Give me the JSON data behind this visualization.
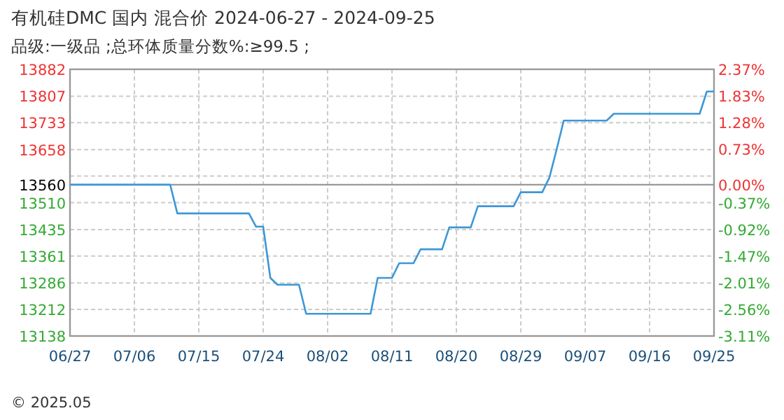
{
  "chart_data": {
    "type": "line",
    "title": "有机硅DMC 国内 混合价 2024-06-27 - 2024-09-25",
    "subtitle": "品级:一级品 ;总环体质量分数%:≥99.5 ;",
    "x": [
      "2024-06-27",
      "2024-07-11",
      "2024-07-12",
      "2024-07-22",
      "2024-07-23",
      "2024-07-24",
      "2024-07-25",
      "2024-07-26",
      "2024-07-29",
      "2024-07-30",
      "2024-08-08",
      "2024-08-09",
      "2024-08-11",
      "2024-08-12",
      "2024-08-14",
      "2024-08-15",
      "2024-08-18",
      "2024-08-19",
      "2024-08-22",
      "2024-08-23",
      "2024-08-28",
      "2024-08-29",
      "2024-09-01",
      "2024-09-02",
      "2024-09-03",
      "2024-09-04",
      "2024-09-10",
      "2024-09-11",
      "2024-09-23",
      "2024-09-24",
      "2024-09-25"
    ],
    "series": [
      {
        "color": "#3c97d6",
        "values": [
          13560,
          13560,
          13480,
          13480,
          13443,
          13443,
          13300,
          13281,
          13281,
          13200,
          13200,
          13300,
          13300,
          13341,
          13341,
          13380,
          13380,
          13441,
          13441,
          13500,
          13500,
          13539,
          13539,
          13580,
          13658,
          13739,
          13739,
          13758,
          13758,
          13820,
          13820
        ]
      }
    ],
    "xlim": [
      "2024-06-27",
      "2024-09-25"
    ],
    "xticks": [
      {
        "value": "2024-06-27",
        "label": "06/27"
      },
      {
        "value": "2024-07-06",
        "label": "07/06"
      },
      {
        "value": "2024-07-15",
        "label": "07/15"
      },
      {
        "value": "2024-07-24",
        "label": "07/24"
      },
      {
        "value": "2024-08-02",
        "label": "08/02"
      },
      {
        "value": "2024-08-11",
        "label": "08/11"
      },
      {
        "value": "2024-08-20",
        "label": "08/20"
      },
      {
        "value": "2024-08-29",
        "label": "08/29"
      },
      {
        "value": "2024-09-07",
        "label": "09/07"
      },
      {
        "value": "2024-09-16",
        "label": "09/16"
      },
      {
        "value": "2024-09-25",
        "label": "09/25"
      }
    ],
    "ylim": [
      13138,
      13882
    ],
    "yticks": [
      13882,
      13807,
      13733,
      13658,
      {
        "value": 13584,
        "label": null
      },
      13560,
      13510,
      13435,
      13361,
      13286,
      13212,
      13138
    ],
    "y2lim": [
      -3.11,
      2.37
    ],
    "y2ticks": [
      {
        "value": 2.37,
        "label": "2.37%"
      },
      {
        "value": 1.83,
        "label": "1.83%"
      },
      {
        "value": 1.28,
        "label": "1.28%"
      },
      {
        "value": 0.73,
        "label": "0.73%"
      },
      {
        "value": 0,
        "label": "0.00%"
      },
      {
        "value": -0.37,
        "label": "-0.37%"
      },
      {
        "value": -0.92,
        "label": "-0.92%"
      },
      {
        "value": -1.47,
        "label": "-1.47%"
      },
      {
        "value": -2.01,
        "label": "-2.01%"
      },
      {
        "value": -2.56,
        "label": "-2.56%"
      },
      {
        "value": -3.11,
        "label": "-3.11%"
      }
    ],
    "ref_lines": [
      {
        "axis": "y",
        "value": 13560,
        "color": "#999999"
      }
    ],
    "grid": true,
    "line_style": "solid",
    "marker": "none",
    "annotations": [
      "© 2025.05"
    ]
  }
}
